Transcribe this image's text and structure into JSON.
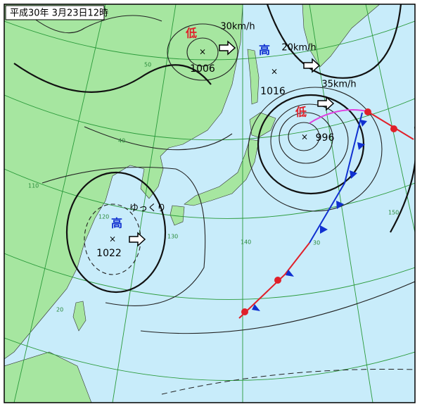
{
  "header": {
    "title": "平成30年 3月23日12時"
  },
  "systems": [
    {
      "kind": "低",
      "color": "#e0202a",
      "motion": "30km/h",
      "pressure": 1006
    },
    {
      "kind": "高",
      "color": "#1030d0",
      "motion": "20km/h",
      "pressure": 1016
    },
    {
      "kind": "低",
      "color": "#e0202a",
      "motion": "35km/h",
      "pressure": 996
    },
    {
      "kind": "高",
      "color": "#1030d0",
      "motion": "ゆっくり",
      "pressure": 1022
    }
  ],
  "grid_labels": {
    "latitudes": [
      "50",
      "40",
      "30",
      "20"
    ],
    "longitudes": [
      "110",
      "120",
      "130",
      "140",
      "150"
    ]
  }
}
